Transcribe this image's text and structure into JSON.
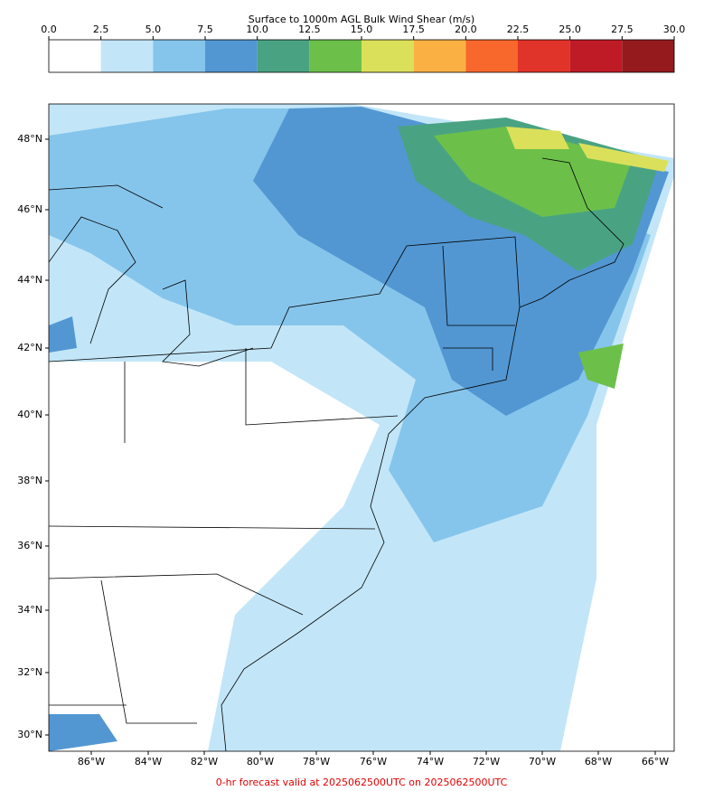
{
  "colorbar": {
    "title": "Surface to 1000m AGL Bulk Wind Shear (m/s)",
    "ticks": [
      {
        "value": 0,
        "label": "0.0"
      },
      {
        "value": 2.5,
        "label": "2.5"
      },
      {
        "value": 5,
        "label": "5.0"
      },
      {
        "value": 7.5,
        "label": "7.5"
      },
      {
        "value": 10,
        "label": "10.0"
      },
      {
        "value": 12.5,
        "label": "12.5"
      },
      {
        "value": 15,
        "label": "15.0"
      },
      {
        "value": 17.5,
        "label": "17.5"
      },
      {
        "value": 20,
        "label": "20.0"
      },
      {
        "value": 22.5,
        "label": "22.5"
      },
      {
        "value": 25,
        "label": "25.0"
      },
      {
        "value": 27.5,
        "label": "27.5"
      },
      {
        "value": 30,
        "label": "30.0"
      }
    ],
    "colors": [
      "#ffffff",
      "#c2e6f8",
      "#86c5eb",
      "#5297d2",
      "#49a383",
      "#6cc04a",
      "#dbe05a",
      "#fbb044",
      "#f8672c",
      "#e03329",
      "#bf1b27",
      "#951a1e"
    ]
  },
  "map": {
    "lat_labels": [
      "48°N",
      "46°N",
      "44°N",
      "42°N",
      "40°N",
      "38°N",
      "36°N",
      "34°N",
      "32°N",
      "30°N"
    ],
    "lon_labels": [
      "86°W",
      "84°W",
      "82°W",
      "80°W",
      "78°W",
      "76°W",
      "74°W",
      "72°W",
      "70°W",
      "68°W",
      "66°W"
    ]
  },
  "footer": "0-hr forecast valid at 2025062500UTC on 2025062500UTC"
}
